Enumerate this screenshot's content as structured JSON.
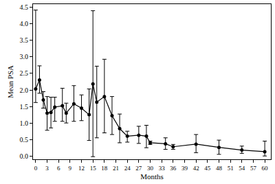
{
  "chart_data": {
    "type": "line",
    "x_label": "Months",
    "y_label": "Mean PSA",
    "x": [
      0,
      1,
      2,
      3,
      4,
      5,
      7,
      8,
      10,
      12,
      14,
      15,
      16,
      18,
      20,
      22,
      24,
      27,
      29,
      30,
      34,
      36,
      42,
      48,
      54,
      60
    ],
    "values": [
      2.03,
      2.3,
      1.7,
      1.3,
      1.32,
      1.48,
      1.52,
      1.3,
      1.58,
      1.45,
      1.25,
      2.18,
      1.63,
      1.8,
      1.22,
      0.83,
      0.6,
      0.63,
      0.6,
      0.4,
      0.37,
      0.28,
      0.36,
      0.26,
      0.18,
      0.13
    ],
    "error_plus": [
      2.39,
      0.43,
      0.25,
      0.5,
      0.46,
      0.3,
      0.53,
      0.3,
      0.55,
      0.4,
      0.78,
      2.22,
      1.09,
      1.13,
      0.58,
      0.44,
      0.15,
      0.27,
      0.33,
      0.05,
      0.18,
      0.07,
      0.29,
      0.22,
      0.12,
      0.32
    ],
    "error_minus": [
      0.41,
      0.4,
      0.25,
      0.52,
      0.47,
      0.43,
      0.47,
      0.3,
      0.53,
      0.38,
      0.78,
      2.2,
      1.08,
      1.1,
      0.57,
      0.43,
      0.18,
      0.25,
      0.35,
      0.05,
      0.17,
      0.08,
      0.26,
      0.21,
      0.1,
      0.13
    ],
    "color": "#000000",
    "marker": "circle",
    "line_style": "solid",
    "xlim": [
      -0.7,
      61.6
    ],
    "xticks": [
      0,
      3,
      6,
      9,
      12,
      15,
      18,
      21,
      24,
      27,
      30,
      33,
      36,
      39,
      42,
      45,
      48,
      51,
      54,
      57,
      60
    ],
    "ylim": [
      -0.1,
      4.6
    ],
    "yticks": [
      {
        "value": 0,
        "label": "0.0"
      },
      0.5,
      {
        "value": 1,
        "label": "1.0"
      },
      1.5,
      {
        "value": 2,
        "label": "2.0"
      },
      2.5,
      {
        "value": 3,
        "label": "3.0"
      },
      3.5,
      {
        "value": 4,
        "label": "4.0"
      },
      4.5
    ],
    "grid": false
  }
}
